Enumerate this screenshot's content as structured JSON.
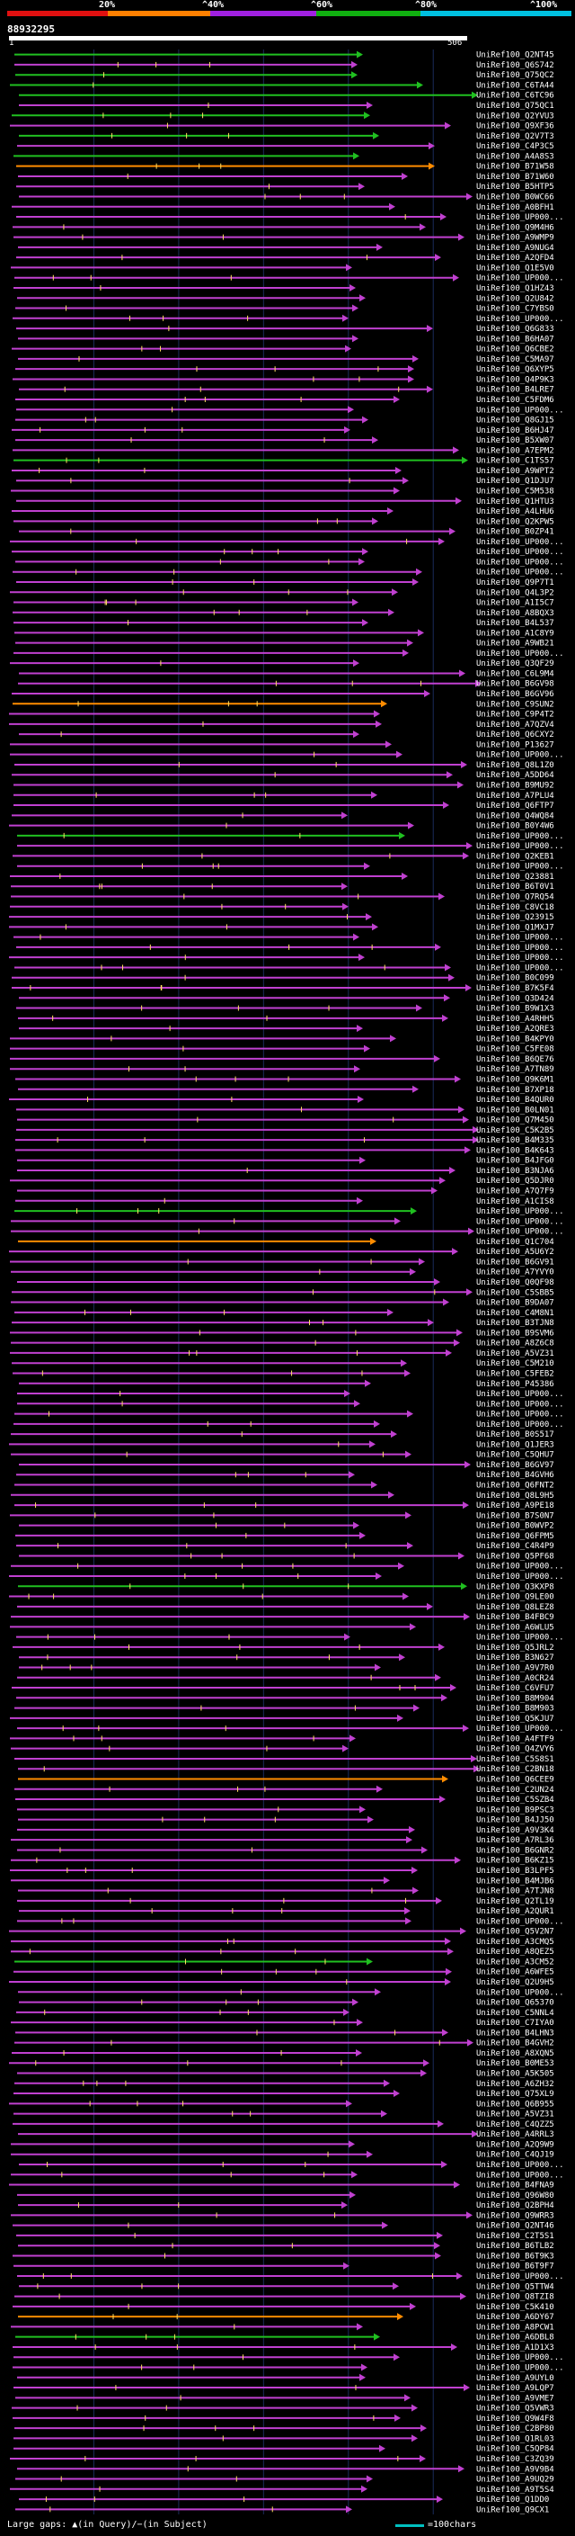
{
  "scale": {
    "labels": [
      "20%",
      "^40%",
      "^60%",
      "^80%",
      "^100%"
    ],
    "colors": [
      "#e01010",
      "#ff8000",
      "#a020e0",
      "#10b010",
      "#00c0e0"
    ]
  },
  "query": {
    "id": "88932295",
    "start": "1",
    "end": "506"
  },
  "hits": [
    "UniRef100_Q2NT45",
    "UniRef100_Q6S742",
    "UniRef100_Q75QC2",
    "UniRef100_C6TA44",
    "UniRef100_C6TC96",
    "UniRef100_Q75QC1",
    "UniRef100_Q2YVU3",
    "UniRef100_Q9XF36",
    "UniRef100_Q2V7T3",
    "UniRef100_C4P3C5",
    "UniRef100_A4A8S3",
    "UniRef100_B71W58",
    "UniRef100_B71W60",
    "UniRef100_B5HTP5",
    "UniRef100_B0WC66",
    "UniRef100_A0BFH1",
    "UniRef100_UP000...",
    "UniRef100_Q9M4H6",
    "UniRef100_A9WMP9",
    "UniRef100_A9NUG4",
    "UniRef100_A2QFD4",
    "UniRef100_Q1E5V0",
    "UniRef100_UP000...",
    "UniRef100_Q1HZ43",
    "UniRef100_Q2U842",
    "UniRef100_C7YBS0",
    "UniRef100_UP000...",
    "UniRef100_Q6G833",
    "UniRef100_B6HA07",
    "UniRef100_Q6CBE2",
    "UniRef100_C5MA97",
    "UniRef100_Q6XYP5",
    "UniRef100_Q4P9K3",
    "UniRef100_B4LRE7",
    "UniRef100_C5FDM6",
    "UniRef100_UP000...",
    "UniRef100_Q8GJ15",
    "UniRef100_B6HJ47",
    "UniRef100_B5XW07",
    "UniRef100_A7EPM2",
    "UniRef100_C1TS57",
    "UniRef100_A9WPT2",
    "UniRef100_Q1DJU7",
    "UniRef100_C5M538",
    "UniRef100_Q1HTU3",
    "UniRef100_A4LHU6",
    "UniRef100_Q2KPW5",
    "UniRef100_B0ZP41",
    "UniRef100_UP000...",
    "UniRef100_UP000...",
    "UniRef100_UP000...",
    "UniRef100_UP000...",
    "UniRef100_Q9P7T1",
    "UniRef100_Q4L3P2",
    "UniRef100_A1I5C7",
    "UniRef100_A8BQX3",
    "UniRef100_B4L537",
    "UniRef100_A1C8Y9",
    "UniRef100_A9WB21",
    "UniRef100_UP000...",
    "UniRef100_Q3QF29",
    "UniRef100_C6L9M4",
    "UniRef100_B6GV98",
    "UniRef100_B6GV96",
    "UniRef100_C9SUN2",
    "UniRef100_C9P4T2",
    "UniRef100_A7QZV4",
    "UniRef100_Q6CXY2",
    "UniRef100_P13627",
    "UniRef100_UP000...",
    "UniRef100_Q8L1Z0",
    "UniRef100_A5DD64",
    "UniRef100_B9MU92",
    "UniRef100_A7PLU4",
    "UniRef100_Q6FTP7",
    "UniRef100_Q4WQ84",
    "UniRef100_B0Y4W6",
    "UniRef100_UP000...",
    "UniRef100_UP000...",
    "UniRef100_Q2KEB1",
    "UniRef100_UP000...",
    "UniRef100_Q23881",
    "UniRef100_B6T0V1",
    "UniRef100_Q7RQ54",
    "UniRef100_C8VC18",
    "UniRef100_Q23915",
    "UniRef100_Q1MXJ7",
    "UniRef100_UP000...",
    "UniRef100_UP000...",
    "UniRef100_UP000...",
    "UniRef100_UP000...",
    "UniRef100_B0C099",
    "UniRef100_B7K5F4",
    "UniRef100_Q3D424",
    "UniRef100_B9W1X3",
    "UniRef100_A4RHH5",
    "UniRef100_A2QRE3",
    "UniRef100_B4KPY0",
    "UniRef100_C5FE08",
    "UniRef100_B6QE76",
    "UniRef100_A7TN89",
    "UniRef100_Q9K6M1",
    "UniRef100_B7XP18",
    "UniRef100_B4QUR0",
    "UniRef100_B0LN01",
    "UniRef100_Q7M450",
    "UniRef100_C5K2B5",
    "UniRef100_B4M335",
    "UniRef100_B4K643",
    "UniRef100_B4JFG0",
    "UniRef100_B3NJA6",
    "UniRef100_Q5DJR0",
    "UniRef100_A7Q7F9",
    "UniRef100_A1CIS8",
    "UniRef100_UP000...",
    "UniRef100_UP000...",
    "UniRef100_UP000...",
    "UniRef100_Q1C704",
    "UniRef100_A5U6Y2",
    "UniRef100_B6GV91",
    "UniRef100_A7YVY0",
    "UniRef100_Q0QF98",
    "UniRef100_C5SBB5",
    "UniRef100_B9DA07",
    "UniRef100_C4M8N1",
    "UniRef100_B3TJN8",
    "UniRef100_B9SVM6",
    "UniRef100_A8Z6C8",
    "UniRef100_A5VZ31",
    "UniRef100_C5M210",
    "UniRef100_C5FEB2",
    "UniRef100_P45386",
    "UniRef100_UP000...",
    "UniRef100_UP000...",
    "UniRef100_UP000...",
    "UniRef100_UP000...",
    "UniRef100_B0S517",
    "UniRef100_Q1JER3",
    "UniRef100_C5QHU7",
    "UniRef100_B6GV97",
    "UniRef100_B4GVH6",
    "UniRef100_Q6FNT2",
    "UniRef100_Q8L9H5",
    "UniRef100_A9PE18",
    "UniRef100_B7S0N7",
    "UniRef100_B0WVP2",
    "UniRef100_Q6FPM5",
    "UniRef100_C4R4P9",
    "UniRef100_Q5PF68",
    "UniRef100_UP000...",
    "UniRef100_UP000...",
    "UniRef100_Q3KXP8",
    "UniRef100_Q9LE00",
    "UniRef100_Q8LEZ8",
    "UniRef100_B4FBC9",
    "UniRef100_A6WLU5",
    "UniRef100_UP000...",
    "UniRef100_Q5JRL2",
    "UniRef100_B3N627",
    "UniRef100_A9V7R0",
    "UniRef100_A0CR24",
    "UniRef100_C6VFU7",
    "UniRef100_B8M904",
    "UniRef100_B8M903",
    "UniRef100_Q5KJU7",
    "UniRef100_UP000...",
    "UniRef100_A4FTF9",
    "UniRef100_Q4ZVY6",
    "UniRef100_C5S8S1",
    "UniRef100_C2BN18",
    "UniRef100_Q6CEE9",
    "UniRef100_C2UN24",
    "UniRef100_C5SZB4",
    "UniRef100_B9PSC3",
    "UniRef100_B4JJ50",
    "UniRef100_A9V3K4",
    "UniRef100_A7RL36",
    "UniRef100_B6GNR2",
    "UniRef100_B6KZ15",
    "UniRef100_B3LPF5",
    "UniRef100_B4MJB6",
    "UniRef100_A7TJN8",
    "UniRef100_Q2TL19",
    "UniRef100_A2QUR1",
    "UniRef100_UP000...",
    "UniRef100_Q5V2N7",
    "UniRef100_A3CMQ5",
    "UniRef100_A8QEZ5",
    "UniRef100_A3CM52",
    "UniRef100_A6WFE5",
    "UniRef100_Q2U9H5",
    "UniRef100_UP000...",
    "UniRef100_Q65370",
    "UniRef100_C5NNL4",
    "UniRef100_C7IYA0",
    "UniRef100_B4LHN3",
    "UniRef100_B4GVH2",
    "UniRef100_A8XQN5",
    "UniRef100_B0ME53",
    "UniRef100_A5K505",
    "UniRef100_A6ZH32",
    "UniRef100_Q75XL9",
    "UniRef100_Q6B955",
    "UniRef100_A5VZ31",
    "UniRef100_C4QZZ5",
    "UniRef100_A4RRL3",
    "UniRef100_A2Q9W9",
    "UniRef100_C4QJ19",
    "UniRef100_UP000...",
    "UniRef100_UP000...",
    "UniRef100_B4FNA9",
    "UniRef100_Q96W80",
    "UniRef100_Q2BPH4",
    "UniRef100_Q9WRR3",
    "UniRef100_Q2NT46",
    "UniRef100_C2T5S1",
    "UniRef100_B6TLB2",
    "UniRef100_B6T9K3",
    "UniRef100_B6T9F7",
    "UniRef100_UP000...",
    "UniRef100_Q5TTW4",
    "UniRef100_Q8TZI8",
    "UniRef100_C5K410",
    "UniRef100_A6DY67",
    "UniRef100_A8PCW1",
    "UniRef100_A6DBL8",
    "UniRef100_A1D1X3",
    "UniRef100_UP000...",
    "UniRef100_UP000...",
    "UniRef100_A9UYL0",
    "UniRef100_A9LQP7",
    "UniRef100_A9VME7",
    "UniRef100_Q5VWR3",
    "UniRef100_Q9W4F8",
    "UniRef100_C2BP80",
    "UniRef100_Q1RL03",
    "UniRef100_C5QP84",
    "UniRef100_C3ZQ39",
    "UniRef100_A9V9B4",
    "UniRef100_A9UQ29",
    "UniRef100_A9T5S4",
    "UniRef100_Q1DD0",
    "UniRef100_Q9CX1"
  ],
  "legend": {
    "text": "Large gaps: ▲(in Query)/−(in Subject)",
    "scale_text": "=100chars"
  }
}
